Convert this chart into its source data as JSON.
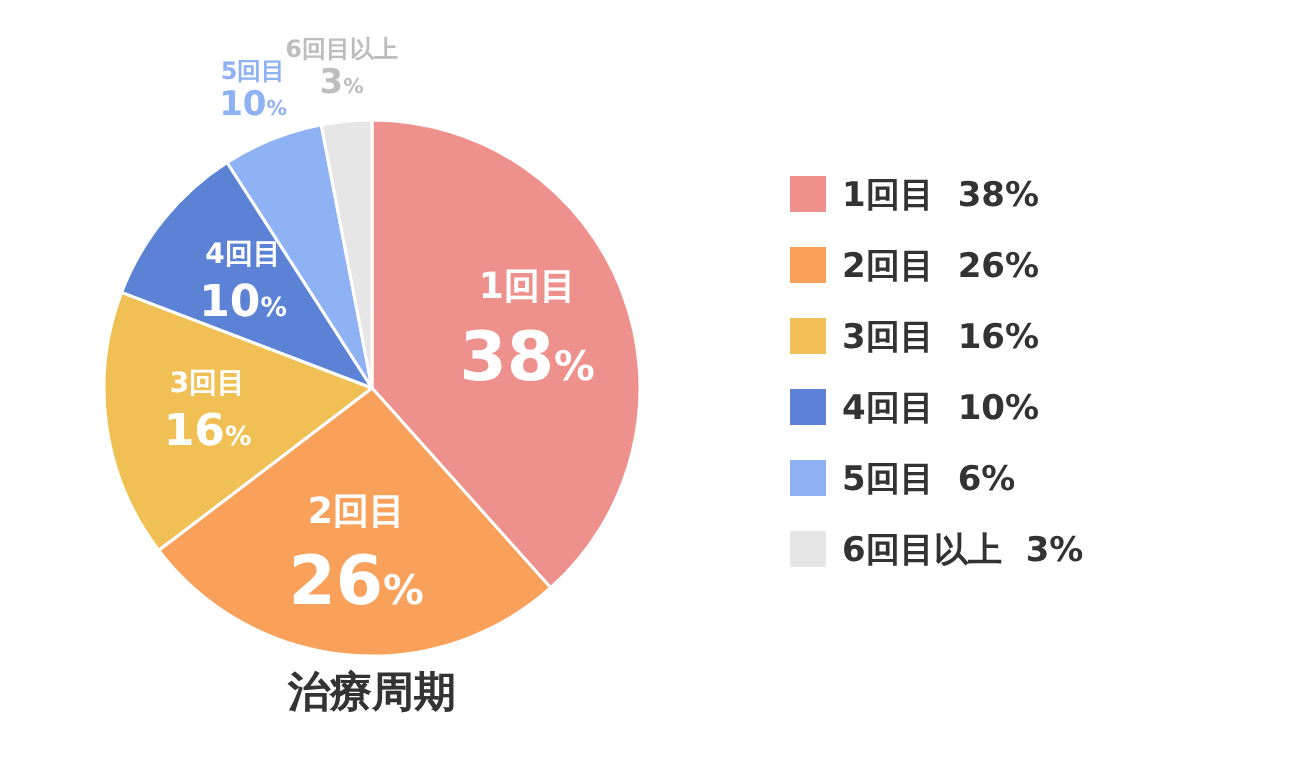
{
  "chart_data": {
    "type": "pie",
    "title": "治療周期",
    "categories": [
      "1回目",
      "2回目",
      "3回目",
      "4回目",
      "5回目",
      "6回目以上"
    ],
    "values": [
      38,
      26,
      16,
      10,
      6,
      3
    ],
    "value_labels": [
      "38%",
      "26%",
      "16%",
      "10%",
      "6%",
      "3%"
    ],
    "annotations": [
      "38%",
      "26%",
      "16%",
      "10%",
      "10%",
      "3%"
    ],
    "colors": [
      "#ee918c",
      "#f9a05b",
      "#f1c054",
      "#5b82d4",
      "#8fb2f5",
      "#e6e6e6"
    ],
    "legend": "right"
  }
}
